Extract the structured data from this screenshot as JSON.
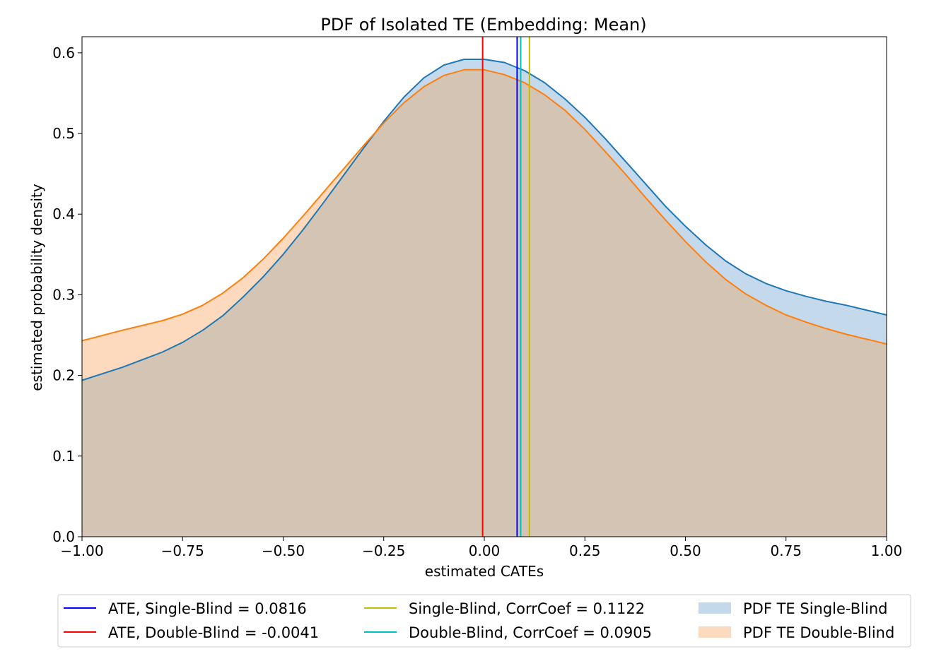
{
  "chart_data": {
    "type": "area",
    "title": "PDF of Isolated TE (Embedding: Mean)",
    "xlabel": "estimated CATEs",
    "ylabel": "estimated probability density",
    "xlim": [
      -1.0,
      1.0
    ],
    "ylim": [
      0.0,
      0.62
    ],
    "x_ticks": [
      -1.0,
      -0.75,
      -0.5,
      -0.25,
      0.0,
      0.25,
      0.5,
      0.75,
      1.0
    ],
    "x_tick_labels": [
      "−1.00",
      "−0.75",
      "−0.50",
      "−0.25",
      "0.00",
      "0.25",
      "0.50",
      "0.75",
      "1.00"
    ],
    "y_ticks": [
      0.0,
      0.1,
      0.2,
      0.3,
      0.4,
      0.5,
      0.6
    ],
    "y_tick_labels": [
      "0.0",
      "0.1",
      "0.2",
      "0.3",
      "0.4",
      "0.5",
      "0.6"
    ],
    "grid": false,
    "legend_position": "below",
    "x": [
      -1.0,
      -0.9,
      -0.8,
      -0.75,
      -0.7,
      -0.65,
      -0.6,
      -0.55,
      -0.5,
      -0.45,
      -0.4,
      -0.35,
      -0.3,
      -0.25,
      -0.2,
      -0.15,
      -0.1,
      -0.05,
      0.0,
      0.05,
      0.1,
      0.15,
      0.2,
      0.25,
      0.3,
      0.35,
      0.4,
      0.45,
      0.5,
      0.55,
      0.6,
      0.65,
      0.7,
      0.75,
      0.8,
      0.85,
      0.9,
      0.95,
      1.0
    ],
    "series": [
      {
        "name": "PDF TE Single-Blind",
        "color": "#1f77b4",
        "fill": "#c5d9ec",
        "values": [
          0.194,
          0.21,
          0.229,
          0.241,
          0.256,
          0.274,
          0.297,
          0.322,
          0.35,
          0.381,
          0.414,
          0.448,
          0.482,
          0.515,
          0.545,
          0.569,
          0.585,
          0.592,
          0.592,
          0.588,
          0.578,
          0.563,
          0.543,
          0.52,
          0.494,
          0.466,
          0.438,
          0.41,
          0.385,
          0.362,
          0.342,
          0.326,
          0.314,
          0.305,
          0.298,
          0.292,
          0.287,
          0.281,
          0.275
        ]
      },
      {
        "name": "PDF TE Double-Blind",
        "color": "#ff7f0e",
        "fill": "#fdd9be",
        "values": [
          0.243,
          0.256,
          0.268,
          0.276,
          0.287,
          0.302,
          0.321,
          0.344,
          0.37,
          0.398,
          0.427,
          0.456,
          0.485,
          0.513,
          0.538,
          0.558,
          0.572,
          0.579,
          0.579,
          0.573,
          0.563,
          0.548,
          0.529,
          0.505,
          0.478,
          0.45,
          0.421,
          0.393,
          0.366,
          0.341,
          0.319,
          0.301,
          0.287,
          0.275,
          0.266,
          0.258,
          0.251,
          0.245,
          0.239
        ]
      }
    ],
    "overlap_fill": "#d4c4b4",
    "vlines": [
      {
        "label": "ATE, Single-Blind = 0.0816",
        "x": 0.0816,
        "color": "#0000ff"
      },
      {
        "label": "ATE, Double-Blind = -0.0041",
        "x": -0.0041,
        "color": "#ff0000"
      },
      {
        "label": "Single-Blind, CorrCoef = 0.1122",
        "x": 0.1122,
        "color": "#bfbf00"
      },
      {
        "label": "Double-Blind, CorrCoef = 0.0905",
        "x": 0.0905,
        "color": "#00bfbf"
      }
    ]
  }
}
